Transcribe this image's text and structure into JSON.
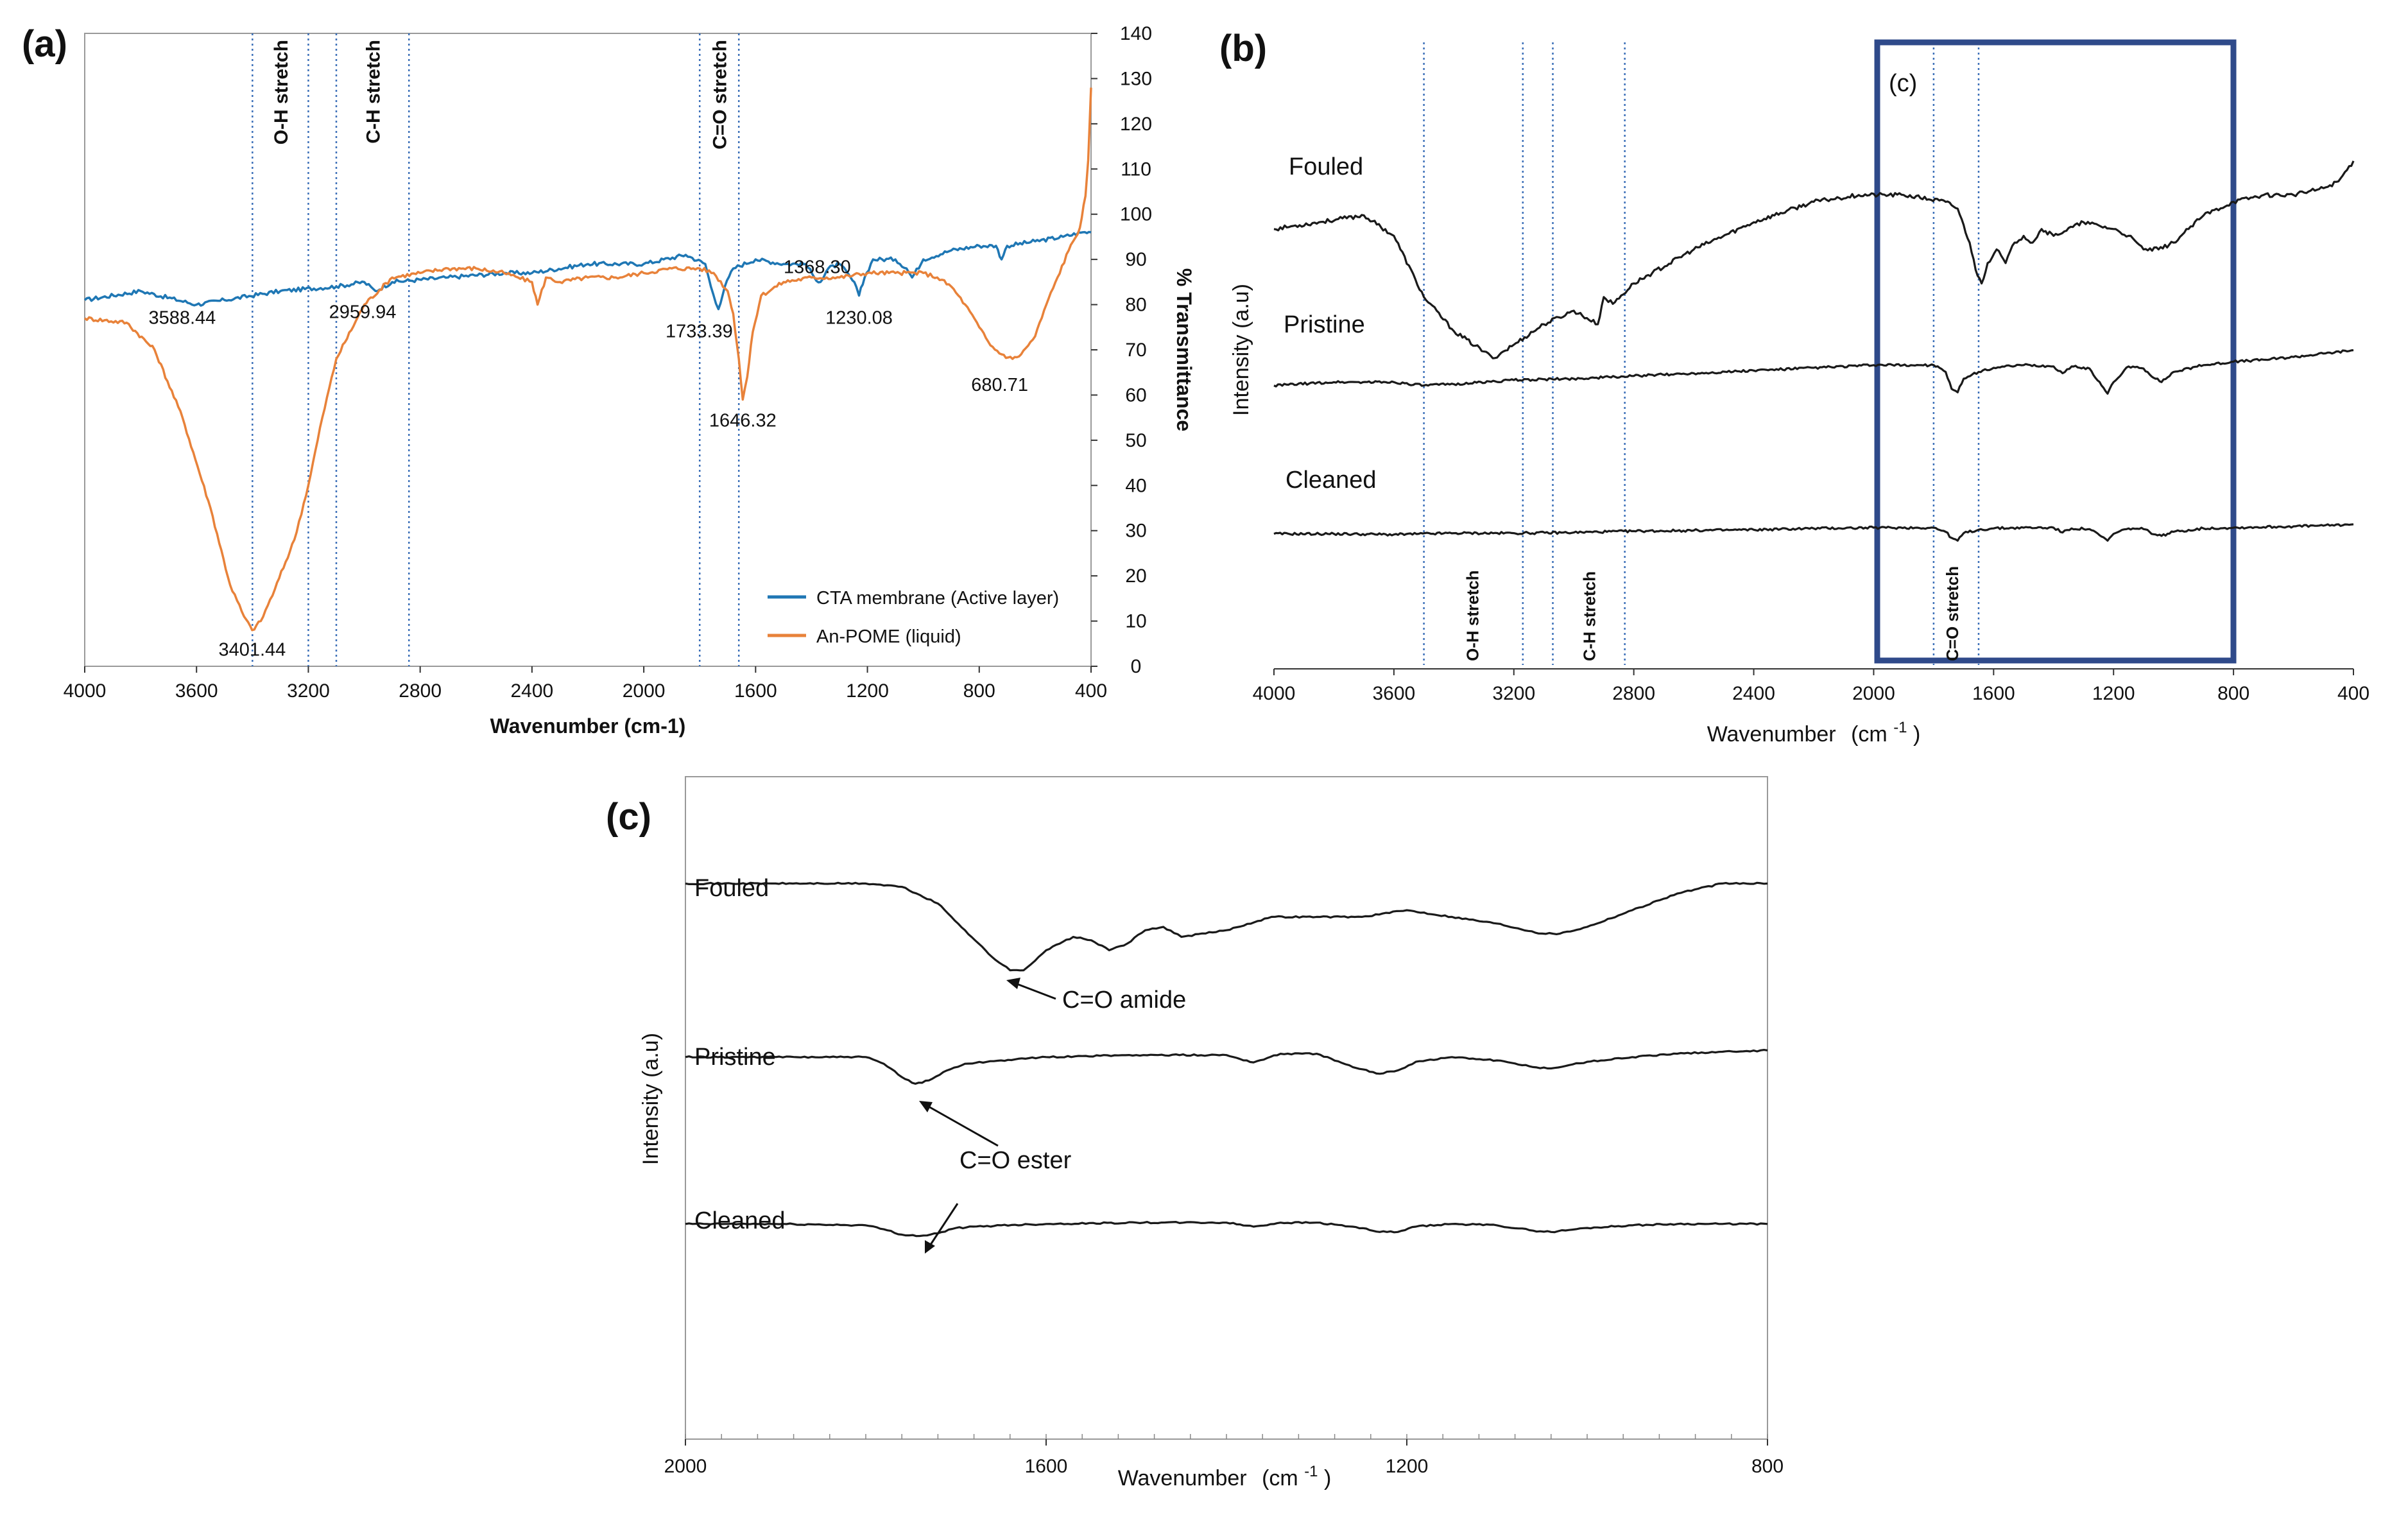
{
  "figure": {
    "panel_a": "(a)",
    "panel_b": "(b)",
    "panel_c": "(c)",
    "inset_marker": "(c)"
  },
  "colors": {
    "cta": "#1f77b4",
    "pome": "#e8823a",
    "spectra": "#1a1a1a",
    "inset_box": "#2f4a8a",
    "guide": "#3b6fb8"
  },
  "chart_data": [
    {
      "id": "a",
      "type": "line",
      "title": "",
      "xlabel": "Wavenumber (cm-1)",
      "ylabel": "% Transmittance",
      "xlim": [
        4000,
        400
      ],
      "ylim": [
        0,
        140
      ],
      "xticks": [
        4000,
        3600,
        3200,
        2800,
        2400,
        2000,
        1600,
        1200,
        800,
        400
      ],
      "yticks": [
        0,
        10,
        20,
        30,
        40,
        50,
        60,
        70,
        80,
        90,
        100,
        110,
        120,
        130,
        140
      ],
      "guides": [
        3400,
        3200,
        3100,
        2840,
        1800,
        1660
      ],
      "stretch_labels": [
        {
          "text": "O-H stretch",
          "x": 3300
        },
        {
          "text": "C-H stretch",
          "x": 2970
        },
        {
          "text": "C=O stretch",
          "x": 1730
        }
      ],
      "series": [
        {
          "name": "CTA membrane (Active layer)",
          "x": [
            4000,
            3800,
            3600,
            3500,
            3300,
            3100,
            3000,
            2960,
            2900,
            2700,
            2500,
            2400,
            2200,
            2000,
            1850,
            1780,
            1760,
            1733,
            1710,
            1680,
            1600,
            1500,
            1420,
            1390,
            1368,
            1340,
            1300,
            1260,
            1240,
            1230,
            1210,
            1180,
            1100,
            1060,
            1040,
            1000,
            900,
            800,
            740,
            720,
            700,
            600,
            500,
            430,
            400
          ],
          "values": [
            81,
            83,
            80,
            81,
            83,
            84,
            85,
            83,
            85,
            86,
            87,
            87,
            89,
            89,
            91,
            89,
            84,
            79,
            84,
            88,
            90,
            89,
            89,
            86,
            85,
            88,
            89,
            86,
            84,
            82,
            86,
            90,
            90,
            88,
            86,
            90,
            92,
            93,
            93,
            90,
            93,
            94,
            95,
            96,
            96
          ]
        },
        {
          "name": "An-POME (liquid)",
          "x": [
            4000,
            3850,
            3750,
            3650,
            3550,
            3480,
            3430,
            3401,
            3370,
            3320,
            3250,
            3200,
            3150,
            3100,
            3000,
            2900,
            2800,
            2700,
            2600,
            2500,
            2450,
            2400,
            2380,
            2350,
            2300,
            2200,
            2100,
            2000,
            1900,
            1800,
            1750,
            1700,
            1680,
            1660,
            1646,
            1630,
            1610,
            1580,
            1500,
            1400,
            1300,
            1200,
            1100,
            1000,
            950,
            900,
            850,
            800,
            760,
            720,
            681,
            650,
            600,
            560,
            520,
            480,
            440,
            420,
            410,
            400
          ],
          "values": [
            77,
            76,
            70,
            55,
            35,
            18,
            11,
            8,
            10,
            17,
            28,
            40,
            55,
            68,
            80,
            86,
            87,
            88,
            88,
            87,
            86,
            85,
            80,
            86,
            85,
            86,
            86,
            87,
            88,
            88,
            87,
            83,
            78,
            68,
            59,
            64,
            74,
            82,
            85,
            86,
            86,
            87,
            87,
            87,
            86,
            84,
            80,
            75,
            71,
            69,
            68,
            69,
            73,
            80,
            86,
            92,
            97,
            104,
            112,
            128
          ]
        }
      ],
      "annotations": [
        {
          "text": "3588.44",
          "x": 3588,
          "y": 80
        },
        {
          "text": "3401.44",
          "x": 3401,
          "y": 8
        },
        {
          "text": "2959.94",
          "x": 2960,
          "y": 83
        },
        {
          "text": "1733.39",
          "x": 1733,
          "y": 79
        },
        {
          "text": "1646.32",
          "x": 1646,
          "y": 59
        },
        {
          "text": "1368.30",
          "x": 1368,
          "y": 85
        },
        {
          "text": "1230.08",
          "x": 1230,
          "y": 82
        },
        {
          "text": "680.71",
          "x": 681,
          "y": 68
        }
      ],
      "legend": "bottom-right"
    },
    {
      "id": "b",
      "type": "line",
      "xlabel": "Wavenumber",
      "xlabel_unit": "(cm",
      "xlabel_sup": "-1",
      "xlabel_close": ")",
      "ylabel": "Intensity  (a.u)",
      "xlim": [
        4000,
        400
      ],
      "ylim": [
        0,
        100
      ],
      "xticks": [
        4000,
        3600,
        3200,
        2800,
        2400,
        2000,
        1600,
        1200,
        800,
        400
      ],
      "guides": [
        3500,
        3170,
        3070,
        2830,
        1800,
        1650
      ],
      "stretch_labels": [
        {
          "text": "O-H stretch",
          "x": 3340
        },
        {
          "text": "C-H stretch",
          "x": 2950
        },
        {
          "text": "C=O stretch",
          "x": 1740
        }
      ],
      "inset_box": {
        "label": "(c)",
        "x_from": 2000,
        "x_to": 800
      },
      "series": [
        {
          "name": "Fouled",
          "x": [
            4000,
            3850,
            3700,
            3600,
            3500,
            3400,
            3300,
            3270,
            3200,
            3100,
            3000,
            2920,
            2900,
            2870,
            2800,
            2600,
            2400,
            2200,
            2050,
            1900,
            1760,
            1720,
            1680,
            1660,
            1640,
            1620,
            1590,
            1560,
            1530,
            1500,
            1470,
            1440,
            1400,
            1300,
            1200,
            1150,
            1100,
            1050,
            1000,
            950,
            900,
            800,
            700,
            600,
            500,
            450,
            400
          ],
          "values": [
            72,
            73,
            74,
            71,
            62,
            57,
            54,
            53,
            55,
            58,
            60,
            58,
            62,
            61,
            64,
            69,
            73,
            76,
            77,
            77,
            76,
            75,
            70,
            66,
            64,
            67,
            69,
            67,
            70,
            71,
            70,
            72,
            71,
            73,
            72,
            71,
            69,
            69,
            70,
            72,
            74,
            76,
            77,
            77,
            78,
            79,
            82
          ]
        },
        {
          "name": "Pristine",
          "x": [
            4000,
            3800,
            3600,
            3500,
            3400,
            3200,
            3000,
            2800,
            2600,
            2400,
            2200,
            2000,
            1800,
            1760,
            1740,
            1720,
            1700,
            1650,
            1600,
            1500,
            1400,
            1370,
            1340,
            1280,
            1240,
            1220,
            1200,
            1150,
            1100,
            1060,
            1040,
            1000,
            900,
            800,
            700,
            600,
            500,
            400
          ],
          "values": [
            49,
            49.5,
            49.5,
            49,
            49.2,
            49.8,
            50,
            50.4,
            50.8,
            51.2,
            51.6,
            52,
            52,
            51,
            48.5,
            48,
            50,
            51,
            51.6,
            52,
            51.8,
            50.8,
            51.8,
            51.5,
            49,
            47.8,
            49.5,
            51.8,
            51.5,
            50,
            49.5,
            51,
            52,
            52.5,
            52.8,
            53.2,
            53.7,
            54.2
          ]
        },
        {
          "name": "Cleaned",
          "x": [
            4000,
            3800,
            3600,
            3400,
            3200,
            3000,
            2800,
            2600,
            2400,
            2200,
            2000,
            1800,
            1760,
            1740,
            1720,
            1700,
            1650,
            1600,
            1500,
            1400,
            1370,
            1340,
            1280,
            1240,
            1220,
            1200,
            1150,
            1100,
            1060,
            1040,
            1000,
            900,
            800,
            700,
            600,
            500,
            400
          ],
          "values": [
            27.2,
            27.2,
            27.1,
            27.3,
            27.3,
            27.4,
            27.6,
            27.7,
            27.8,
            28,
            28.1,
            28.1,
            27.5,
            26.6,
            26.2,
            27.3,
            27.8,
            28,
            28.1,
            28.1,
            27.4,
            28,
            27.9,
            26.8,
            26.2,
            27.2,
            28,
            27.9,
            27.1,
            26.9,
            27.5,
            28,
            28.1,
            28.2,
            28.3,
            28.4,
            28.6
          ]
        }
      ]
    },
    {
      "id": "c",
      "type": "line",
      "xlabel": "Wavenumber",
      "xlabel_unit": "(cm",
      "xlabel_sup": "-1",
      "xlabel_close": ")",
      "ylabel": "Intensity (a.u)",
      "xlim": [
        2000,
        800
      ],
      "ylim": [
        0,
        100
      ],
      "xticks": [
        2000,
        1600,
        1200,
        800
      ],
      "series": [
        {
          "name": "Fouled",
          "x": [
            2000,
            1900,
            1850,
            1800,
            1760,
            1720,
            1690,
            1660,
            1640,
            1625,
            1600,
            1570,
            1550,
            1530,
            1510,
            1490,
            1470,
            1450,
            1400,
            1350,
            1300,
            1250,
            1200,
            1150,
            1100,
            1050,
            1030,
            1000,
            950,
            900,
            850,
            800
          ],
          "values": [
            84,
            84,
            84,
            84,
            83.5,
            81,
            77,
            73,
            71,
            71,
            74,
            76,
            75.5,
            74,
            75,
            77,
            77.5,
            76,
            77,
            79,
            79,
            79,
            80,
            79,
            78,
            76.5,
            76.5,
            77.5,
            80,
            82.5,
            84,
            84
          ]
        },
        {
          "name": "Pristine",
          "x": [
            2000,
            1900,
            1800,
            1780,
            1760,
            1745,
            1730,
            1710,
            1690,
            1650,
            1600,
            1500,
            1400,
            1370,
            1340,
            1300,
            1260,
            1230,
            1210,
            1190,
            1150,
            1100,
            1060,
            1040,
            1020,
            1000,
            950,
            900,
            850,
            800
          ],
          "values": [
            58,
            58,
            58,
            57,
            55,
            54,
            54.5,
            56,
            57,
            57.5,
            58,
            58.3,
            58.3,
            57.2,
            58.5,
            58.5,
            56.5,
            55.5,
            56,
            57.3,
            58,
            57.5,
            56.5,
            56.3,
            56.8,
            57.3,
            58,
            58.5,
            58.8,
            59
          ]
        },
        {
          "name": "Cleaned",
          "x": [
            2000,
            1900,
            1800,
            1780,
            1760,
            1740,
            1720,
            1700,
            1650,
            1600,
            1500,
            1400,
            1370,
            1340,
            1300,
            1260,
            1230,
            1210,
            1190,
            1150,
            1100,
            1060,
            1040,
            1020,
            1000,
            950,
            900,
            850,
            800
          ],
          "values": [
            33,
            33,
            32.8,
            32.2,
            31.4,
            31.2,
            31.6,
            32.4,
            32.8,
            33,
            33.2,
            33.2,
            32.6,
            33.2,
            33.2,
            32.6,
            31.8,
            31.8,
            32.6,
            33,
            32.8,
            32,
            31.8,
            32.1,
            32.4,
            32.8,
            33,
            33,
            33
          ]
        }
      ],
      "annotations": [
        {
          "text": "C=O amide",
          "x": 1640,
          "y": 71
        },
        {
          "text": "C=O ester",
          "x": 1745,
          "y": 54
        }
      ]
    }
  ]
}
